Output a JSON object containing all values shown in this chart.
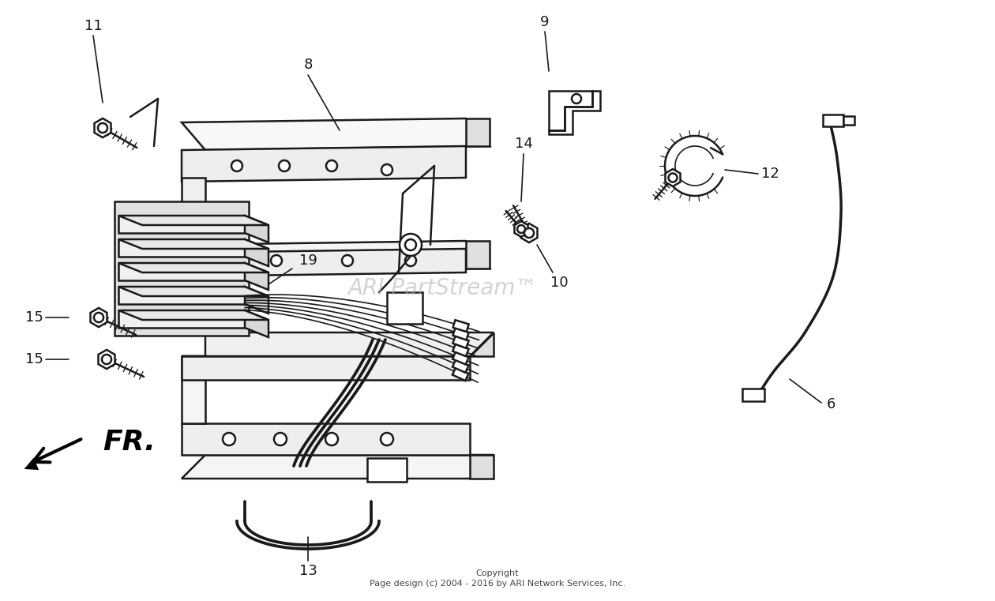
{
  "bg_color": "#ffffff",
  "line_color": "#1a1a1a",
  "watermark_text": "ARI PartStream™",
  "watermark_color": "#b0b0b0",
  "watermark_alpha": 0.55,
  "copyright_line1": "Copyright",
  "copyright_line2": "Page design (c) 2004 - 2016 by ARI Network Services, Inc.",
  "fr_text": "FR.",
  "label_fontsize": 13
}
